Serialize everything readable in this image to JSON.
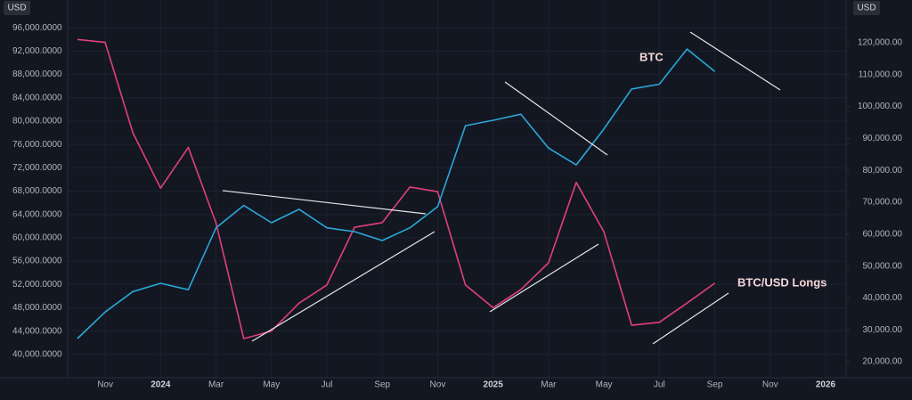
{
  "chart_data": {
    "type": "line",
    "y_label": "USD",
    "y2_label": "USD",
    "annotations": [
      "BTC",
      "BTC/USD Longs"
    ],
    "x": [
      "2023-10",
      "2023-11",
      "2023-12",
      "2024-01",
      "2024-02",
      "2024-03",
      "2024-04",
      "2024-05",
      "2024-06",
      "2024-07",
      "2024-08",
      "2024-09",
      "2024-10",
      "2024-11",
      "2024-12",
      "2025-01",
      "2025-02",
      "2025-03",
      "2025-04",
      "2025-05",
      "2025-06",
      "2025-07",
      "2025-08",
      "2025-09"
    ],
    "xlim": [
      "2023-10",
      "2026-01"
    ],
    "xticks": [
      {
        "value": "2023-11",
        "label": "Nov"
      },
      {
        "value": "2024-01",
        "label": "2024"
      },
      {
        "value": "2024-03",
        "label": "Mar"
      },
      {
        "value": "2024-05",
        "label": "May"
      },
      {
        "value": "2024-07",
        "label": "Jul"
      },
      {
        "value": "2024-09",
        "label": "Sep"
      },
      {
        "value": "2024-11",
        "label": "Nov"
      },
      {
        "value": "2025-01",
        "label": "2025"
      },
      {
        "value": "2025-03",
        "label": "Mar"
      },
      {
        "value": "2025-05",
        "label": "May"
      },
      {
        "value": "2025-07",
        "label": "Jul"
      },
      {
        "value": "2025-09",
        "label": "Sep"
      },
      {
        "value": "2025-11",
        "label": "Nov"
      },
      {
        "value": "2026-01",
        "label": "2026"
      }
    ],
    "series": [
      {
        "name": "BTC/USD Longs",
        "color": "#e0407a",
        "axis": "y",
        "values": [
          94000,
          93500,
          78000,
          68500,
          75500,
          62500,
          42700,
          44000,
          48800,
          51900,
          61800,
          62600,
          68700,
          67900,
          51900,
          48000,
          51100,
          55700,
          69500,
          61000,
          45000,
          45500,
          48800,
          52200
        ]
      },
      {
        "name": "BTC",
        "color": "#2aa8d8",
        "axis": "y2",
        "values": [
          27300,
          35600,
          42000,
          44600,
          42600,
          62000,
          69000,
          63600,
          67800,
          62000,
          60800,
          58000,
          62000,
          68600,
          94000,
          95700,
          97600,
          87000,
          81700,
          93000,
          105500,
          107000,
          118000,
          111000
        ]
      }
    ],
    "ylim": [
      36000,
      100000
    ],
    "yticks": [
      {
        "value": 40000,
        "label": "40,000.0000"
      },
      {
        "value": 44000,
        "label": "44,000.0000"
      },
      {
        "value": 48000,
        "label": "48,000.0000"
      },
      {
        "value": 52000,
        "label": "52,000.0000"
      },
      {
        "value": 56000,
        "label": "56,000.0000"
      },
      {
        "value": 60000,
        "label": "60,000.0000"
      },
      {
        "value": 64000,
        "label": "64,000.0000"
      },
      {
        "value": 68000,
        "label": "68,000.0000"
      },
      {
        "value": 72000,
        "label": "72,000.0000"
      },
      {
        "value": 76000,
        "label": "76,000.0000"
      },
      {
        "value": 80000,
        "label": "80,000.0000"
      },
      {
        "value": 84000,
        "label": "84,000.0000"
      },
      {
        "value": 88000,
        "label": "88,000.0000"
      },
      {
        "value": 92000,
        "label": "92,000.0000"
      },
      {
        "value": 96000,
        "label": "96,000.0000"
      }
    ],
    "y2lim": [
      15000,
      132000
    ],
    "y2ticks": [
      {
        "value": 20000,
        "label": "20,000.00"
      },
      {
        "value": 30000,
        "label": "30,000.00"
      },
      {
        "value": 40000,
        "label": "40,000.00"
      },
      {
        "value": 50000,
        "label": "50,000.00"
      },
      {
        "value": 60000,
        "label": "60,000.00"
      },
      {
        "value": 70000,
        "label": "70,000.00"
      },
      {
        "value": 80000,
        "label": "80,000.00"
      },
      {
        "value": 90000,
        "label": "90,000.00"
      },
      {
        "value": 100000,
        "label": "100,000.00"
      },
      {
        "value": 110000,
        "label": "110,000.00"
      },
      {
        "value": 120000,
        "label": "120,000.00"
      }
    ],
    "grid": true
  }
}
